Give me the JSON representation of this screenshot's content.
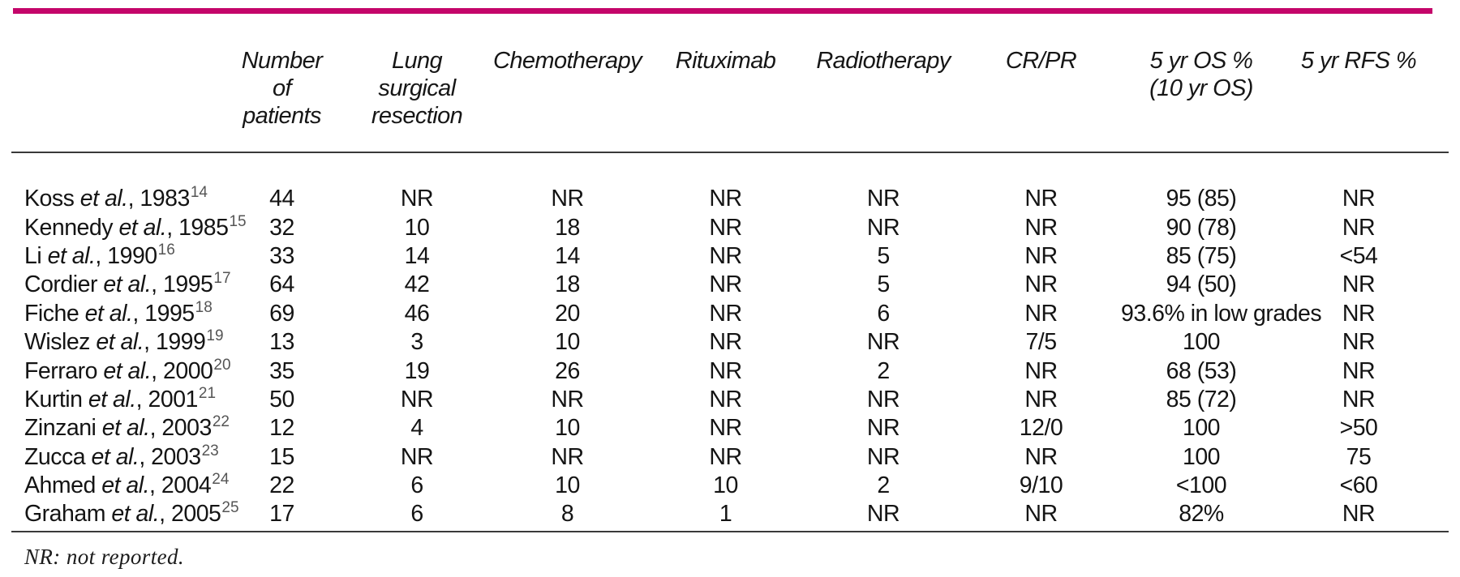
{
  "accent_bar_color": "#c4056a",
  "table": {
    "columns": [
      {
        "key": "study",
        "label": ""
      },
      {
        "key": "patients",
        "label": "Number\nof\npatients"
      },
      {
        "key": "resection",
        "label": "Lung\nsurgical\nresection"
      },
      {
        "key": "chemotherapy",
        "label": "Chemotherapy"
      },
      {
        "key": "rituximab",
        "label": "Rituximab"
      },
      {
        "key": "radiotherapy",
        "label": "Radiotherapy"
      },
      {
        "key": "cr_pr",
        "label": "CR/PR"
      },
      {
        "key": "os",
        "label": "5 yr OS %\n(10 yr OS)"
      },
      {
        "key": "rfs",
        "label": "5 yr RFS %"
      }
    ],
    "rows": [
      {
        "study": {
          "author": "Koss",
          "etal": "et al.",
          "suffix": ", 1983",
          "ref": "14"
        },
        "patients": "44",
        "resection": "NR",
        "chemotherapy": "NR",
        "rituximab": "NR",
        "radiotherapy": "NR",
        "cr_pr": "NR",
        "os": "95 (85)",
        "rfs": "NR"
      },
      {
        "study": {
          "author": "Kennedy",
          "etal": "et al.",
          "suffix": ", 1985",
          "ref": "15"
        },
        "patients": "32",
        "resection": "10",
        "chemotherapy": "18",
        "rituximab": "NR",
        "radiotherapy": "NR",
        "cr_pr": "NR",
        "os": "90 (78)",
        "rfs": "NR"
      },
      {
        "study": {
          "author": "Li",
          "etal": "et al.",
          "suffix": ", 1990",
          "ref": "16"
        },
        "patients": "33",
        "resection": "14",
        "chemotherapy": "14",
        "rituximab": "NR",
        "radiotherapy": "5",
        "cr_pr": "NR",
        "os": "85 (75)",
        "rfs": "<54"
      },
      {
        "study": {
          "author": "Cordier",
          "etal": "et al.",
          "suffix": ", 1995",
          "ref": "17"
        },
        "patients": "64",
        "resection": "42",
        "chemotherapy": "18",
        "rituximab": "NR",
        "radiotherapy": "5",
        "cr_pr": "NR",
        "os": "94 (50)",
        "rfs": "NR"
      },
      {
        "study": {
          "author": "Fiche",
          "etal": "et al.",
          "suffix": ", 1995",
          "ref": "18"
        },
        "patients": "69",
        "resection": "46",
        "chemotherapy": "20",
        "rituximab": "NR",
        "radiotherapy": "6",
        "cr_pr": "NR",
        "os": "93.6% in low grades",
        "rfs": "NR"
      },
      {
        "study": {
          "author": "Wislez",
          "etal": "et al.",
          "suffix": ", 1999",
          "ref": "19"
        },
        "patients": "13",
        "resection": "3",
        "chemotherapy": "10",
        "rituximab": "NR",
        "radiotherapy": "NR",
        "cr_pr": "7/5",
        "os": "100",
        "rfs": "NR"
      },
      {
        "study": {
          "author": "Ferraro",
          "etal": "et al.",
          "suffix": ", 2000",
          "ref": "20"
        },
        "patients": "35",
        "resection": "19",
        "chemotherapy": "26",
        "rituximab": "NR",
        "radiotherapy": "2",
        "cr_pr": "NR",
        "os": "68 (53)",
        "rfs": "NR"
      },
      {
        "study": {
          "author": "Kurtin",
          "etal": "et al.",
          "suffix": ", 2001",
          "ref": "21"
        },
        "patients": "50",
        "resection": "NR",
        "chemotherapy": "NR",
        "rituximab": "NR",
        "radiotherapy": "NR",
        "cr_pr": "NR",
        "os": "85 (72)",
        "rfs": "NR"
      },
      {
        "study": {
          "author": "Zinzani",
          "etal": "et al.",
          "suffix": ", 2003",
          "ref": "22"
        },
        "patients": "12",
        "resection": "4",
        "chemotherapy": "10",
        "rituximab": "NR",
        "radiotherapy": "NR",
        "cr_pr": "12/0",
        "os": "100",
        "rfs": ">50"
      },
      {
        "study": {
          "author": "Zucca",
          "etal": "et al.",
          "suffix": ", 2003",
          "ref": "23"
        },
        "patients": "15",
        "resection": "NR",
        "chemotherapy": "NR",
        "rituximab": "NR",
        "radiotherapy": "NR",
        "cr_pr": "NR",
        "os": "100",
        "rfs": "75"
      },
      {
        "study": {
          "author": "Ahmed",
          "etal": "et al.",
          "suffix": ", 2004",
          "ref": "24"
        },
        "patients": "22",
        "resection": "6",
        "chemotherapy": "10",
        "rituximab": "10",
        "radiotherapy": "2",
        "cr_pr": "9/10",
        "os": "<100",
        "rfs": "<60"
      },
      {
        "study": {
          "author": "Graham",
          "etal": "et al.",
          "suffix": ", 2005",
          "ref": "25"
        },
        "patients": "17",
        "resection": "6",
        "chemotherapy": "8",
        "rituximab": "1",
        "radiotherapy": "NR",
        "cr_pr": "NR",
        "os": "82%",
        "rfs": "NR"
      }
    ],
    "footnote": "NR: not reported."
  }
}
